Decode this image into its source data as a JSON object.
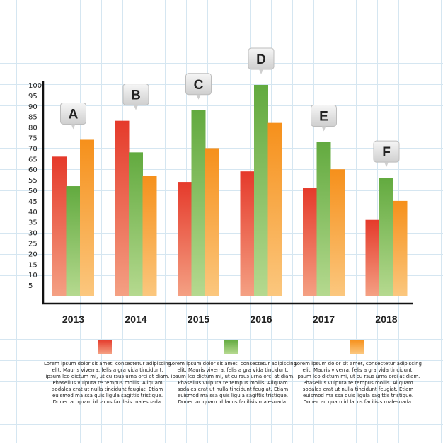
{
  "chart_data": {
    "type": "bar",
    "categories": [
      "2013",
      "2014",
      "2015",
      "2016",
      "2017",
      "2018"
    ],
    "series": [
      {
        "values": [
          66,
          83,
          54,
          59,
          51,
          36
        ],
        "color": "#e8412f"
      },
      {
        "values": [
          52,
          68,
          88,
          100,
          73,
          56
        ],
        "color": "#6ab04c"
      },
      {
        "values": [
          74,
          57,
          70,
          82,
          60,
          45
        ],
        "color": "#f7941d"
      }
    ],
    "group_labels": [
      "A",
      "B",
      "C",
      "D",
      "E",
      "F"
    ],
    "yticks": [
      5,
      10,
      15,
      20,
      25,
      30,
      35,
      40,
      45,
      50,
      55,
      60,
      65,
      70,
      75,
      80,
      85,
      90,
      95,
      100
    ],
    "ylim": [
      0,
      100
    ],
    "grid": true
  },
  "legend": {
    "items": [
      {
        "color": "#e8412f",
        "text": "Lorem ipsum dolor sit amet, consectetur adipiscing elit. Mauris viverra, felis a gra vida tincidunt, ipsum leo dictum mi, ut cu rsus urna orci at diam. Phasellus vulputa te tempus mollis. Aliquam sodales erat ut nulla tincidunt feugiat. Etiam euismod ma ssa quis ligula sagittis tristique. Donec ac quam id lacus facilisis malesuada."
      },
      {
        "color": "#6ab04c",
        "text": "Lorem ipsum dolor sit amet, consectetur adipiscing elit. Mauris viverra, felis a gra vida tincidunt, ipsum leo dictum mi, ut cu rsus urna orci at diam. Phasellus vulputa te tempus mollis. Aliquam sodales erat ut nulla tincidunt feugiat. Etiam euismod ma ssa quis ligula sagittis tristique. Donec ac quam id lacus facilisis malesuada."
      },
      {
        "color": "#f7941d",
        "text": "Lorem ipsum dolor sit amet, consectetur adipiscing elit. Mauris viverra, felis a gra vida tincidunt, ipsum leo dictum mi, ut cu rsus urna orci at diam. Phasellus vulputa te tempus mollis. Aliquam sodales erat ut nulla tincidunt feugiat. Etiam euismod ma ssa quis ligula sagittis tristique. Donec ac quam id lacus facilisis malesuada."
      }
    ]
  }
}
